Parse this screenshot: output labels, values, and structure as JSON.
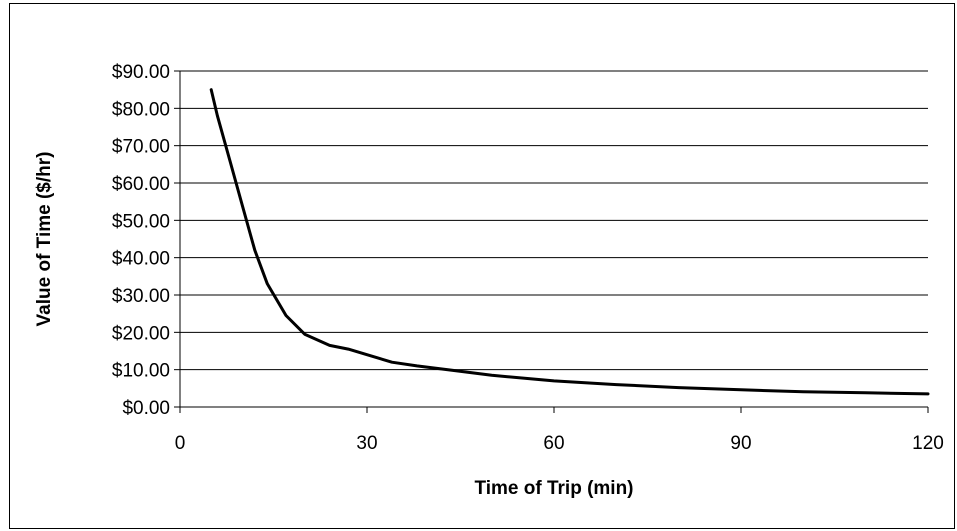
{
  "chart_data": {
    "type": "line",
    "title": "",
    "xlabel": "Time of Trip (min)",
    "ylabel": "Value of Time ($/hr)",
    "xlim": [
      0,
      120
    ],
    "ylim": [
      0,
      90
    ],
    "x_ticks": [
      0,
      30,
      60,
      90,
      120
    ],
    "x_tick_labels": [
      "0",
      "30",
      "60",
      "90",
      "120"
    ],
    "y_ticks": [
      0,
      10,
      20,
      30,
      40,
      50,
      60,
      70,
      80,
      90
    ],
    "y_tick_labels": [
      "$0.00",
      "$10.00",
      "$20.00",
      "$30.00",
      "$40.00",
      "$50.00",
      "$60.00",
      "$70.00",
      "$80.00",
      "$90.00"
    ],
    "grid": {
      "horizontal": true,
      "vertical": false
    },
    "legend": "none",
    "line_color": "#000000",
    "series": [
      {
        "name": "",
        "x": [
          5,
          6,
          8,
          10,
          12,
          14,
          17,
          20,
          24,
          27,
          30,
          34,
          38,
          43,
          50,
          60,
          70,
          80,
          90,
          100,
          110,
          120
        ],
        "y": [
          85,
          78,
          66,
          54,
          42,
          33,
          24.5,
          19.5,
          16.5,
          15.5,
          14,
          12,
          11,
          10,
          8.5,
          7,
          6,
          5.2,
          4.6,
          4.1,
          3.8,
          3.5
        ]
      }
    ]
  }
}
